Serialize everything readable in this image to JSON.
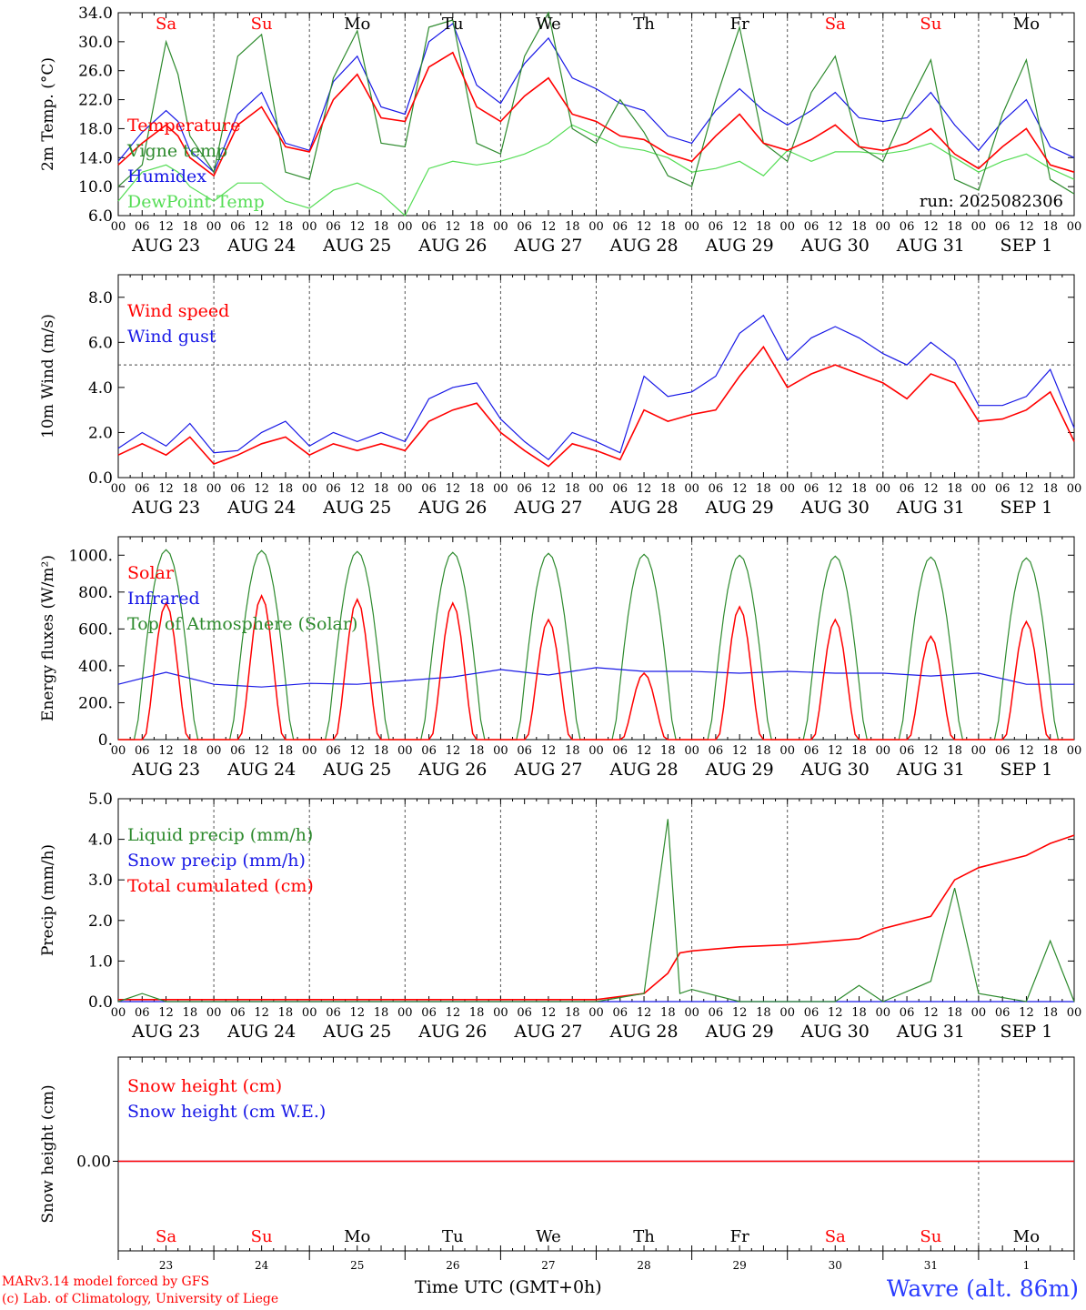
{
  "colors": {
    "red": "#ff0000",
    "green": "#2d8a2d",
    "blue": "#1818e6",
    "lightgreen": "#55dd55",
    "axis": "#000000",
    "weekend": "#ff0000",
    "weekday": "#000000",
    "footer_blue": "#2a3cff"
  },
  "days": [
    {
      "abbr": "Sa",
      "date": "AUG 23",
      "num": "23",
      "weekend": true
    },
    {
      "abbr": "Su",
      "date": "AUG 24",
      "num": "24",
      "weekend": true
    },
    {
      "abbr": "Mo",
      "date": "AUG 25",
      "num": "25",
      "weekend": false
    },
    {
      "abbr": "Tu",
      "date": "AUG 26",
      "num": "26",
      "weekend": false
    },
    {
      "abbr": "We",
      "date": "AUG 27",
      "num": "27",
      "weekend": false
    },
    {
      "abbr": "Th",
      "date": "AUG 28",
      "num": "28",
      "weekend": false
    },
    {
      "abbr": "Fr",
      "date": "AUG 29",
      "num": "29",
      "weekend": false
    },
    {
      "abbr": "Sa",
      "date": "AUG 30",
      "num": "30",
      "weekend": true
    },
    {
      "abbr": "Su",
      "date": "AUG 31",
      "num": "31",
      "weekend": true
    },
    {
      "abbr": "Mo",
      "date": "SEP  1",
      "num": "1",
      "weekend": false
    }
  ],
  "hour_labels": [
    "00",
    "06",
    "12",
    "18"
  ],
  "footer": {
    "credit_line1": "MARv3.14 model forced by GFS",
    "credit_line2": "(c) Lab. of Climatology, University of Liege",
    "xlabel": "Time UTC (GMT+0h)",
    "station": "Wavre (alt. 86m)"
  },
  "chart_data": [
    {
      "type": "line",
      "ylabel": "2m Temp. (°C)",
      "annotation": "run: 2025082306",
      "ylim": [
        6,
        34
      ],
      "yticks": [
        "6.0",
        "10.0",
        "14.0",
        "18.0",
        "22.0",
        "26.0",
        "30.0",
        "34.0"
      ],
      "x_hours": [
        0,
        6,
        12,
        15,
        18,
        24,
        30,
        36,
        42,
        48,
        54,
        60,
        66,
        72,
        78,
        84,
        90,
        96,
        102,
        108,
        114,
        120,
        126,
        132,
        138,
        144,
        150,
        156,
        162,
        168,
        174,
        180,
        186,
        192,
        198,
        204,
        210,
        216,
        222,
        228,
        234,
        240
      ],
      "series": [
        {
          "name": "Temperature",
          "color": "#ff0000",
          "values": [
            13.0,
            16.0,
            18.5,
            17.0,
            14.0,
            11.5,
            18.5,
            21.0,
            15.5,
            14.8,
            22.0,
            25.5,
            19.5,
            19.0,
            26.5,
            28.5,
            21.0,
            19.0,
            22.5,
            25.0,
            20.0,
            19.0,
            17.0,
            16.5,
            14.5,
            13.5,
            17.0,
            20.0,
            16.0,
            15.0,
            16.5,
            18.5,
            15.5,
            15.0,
            16.0,
            18.0,
            14.5,
            12.5,
            15.5,
            18.0,
            13.0,
            12.0
          ]
        },
        {
          "name": "Vigne temp",
          "color": "#2d8a2d",
          "values": [
            10.0,
            13.0,
            30.0,
            25.5,
            17.0,
            12.0,
            28.0,
            31.0,
            12.0,
            11.0,
            25.0,
            31.5,
            16.0,
            15.5,
            32.0,
            33.0,
            16.0,
            14.5,
            28.0,
            34.0,
            18.0,
            16.0,
            22.0,
            17.5,
            11.5,
            10.0,
            22.0,
            32.0,
            16.0,
            13.5,
            23.0,
            28.0,
            15.5,
            13.5,
            21.0,
            27.5,
            11.0,
            9.5,
            20.0,
            27.5,
            11.0,
            9.0
          ]
        },
        {
          "name": "Humidex",
          "color": "#1818e6",
          "values": [
            13.5,
            17.5,
            20.5,
            19.0,
            15.0,
            12.0,
            20.0,
            23.0,
            16.0,
            15.0,
            24.5,
            28.0,
            21.0,
            20.0,
            30.0,
            32.5,
            24.0,
            21.5,
            27.0,
            30.5,
            25.0,
            23.5,
            21.5,
            20.5,
            17.0,
            16.0,
            20.5,
            23.5,
            20.5,
            18.5,
            20.5,
            23.0,
            19.5,
            19.0,
            19.5,
            23.0,
            18.5,
            15.0,
            19.0,
            22.0,
            15.5,
            14.0
          ]
        },
        {
          "name": "DewPoint Temp",
          "color": "#55dd55",
          "values": [
            8.0,
            12.0,
            13.0,
            12.0,
            10.0,
            8.0,
            10.5,
            10.5,
            8.0,
            7.0,
            9.5,
            10.5,
            9.0,
            6.0,
            12.5,
            13.5,
            13.0,
            13.5,
            14.5,
            16.0,
            18.5,
            17.0,
            15.5,
            15.0,
            14.0,
            12.0,
            12.5,
            13.5,
            11.5,
            15.0,
            13.5,
            14.8,
            14.8,
            14.5,
            15.0,
            16.0,
            14.0,
            12.0,
            13.5,
            14.5,
            12.5,
            11.0
          ]
        }
      ]
    },
    {
      "type": "line",
      "ylabel": "10m Wind (m/s)",
      "ylim": [
        0,
        9
      ],
      "yticks": [
        "0.0",
        "2.0",
        "4.0",
        "6.0",
        "8.0"
      ],
      "reference_line": 5,
      "x_hours": [
        0,
        6,
        12,
        18,
        24,
        30,
        36,
        42,
        48,
        54,
        60,
        66,
        72,
        78,
        84,
        90,
        96,
        102,
        108,
        114,
        120,
        126,
        132,
        138,
        144,
        150,
        156,
        162,
        168,
        174,
        180,
        186,
        192,
        198,
        204,
        210,
        216,
        222,
        228,
        234,
        240
      ],
      "series": [
        {
          "name": "Wind speed",
          "color": "#ff0000",
          "values": [
            1.0,
            1.5,
            1.0,
            1.8,
            0.6,
            1.0,
            1.5,
            1.8,
            1.0,
            1.5,
            1.2,
            1.5,
            1.2,
            2.5,
            3.0,
            3.3,
            2.0,
            1.2,
            0.5,
            1.5,
            1.2,
            0.8,
            3.0,
            2.5,
            2.8,
            3.0,
            4.5,
            5.8,
            4.0,
            4.6,
            5.0,
            4.6,
            4.2,
            3.5,
            4.6,
            4.2,
            2.5,
            2.6,
            3.0,
            3.8,
            1.6
          ]
        },
        {
          "name": "Wind gust",
          "color": "#1818e6",
          "values": [
            1.3,
            2.0,
            1.4,
            2.4,
            1.1,
            1.2,
            2.0,
            2.5,
            1.4,
            2.0,
            1.6,
            2.0,
            1.6,
            3.5,
            4.0,
            4.2,
            2.6,
            1.6,
            0.8,
            2.0,
            1.6,
            1.1,
            4.5,
            3.6,
            3.8,
            4.5,
            6.4,
            7.2,
            5.2,
            6.2,
            6.7,
            6.2,
            5.5,
            5.0,
            6.0,
            5.2,
            3.2,
            3.2,
            3.6,
            4.8,
            2.2
          ]
        }
      ]
    },
    {
      "type": "line",
      "ylabel": "Energy fluxes (W/m²)",
      "ylim": [
        0,
        1100
      ],
      "yticks": [
        "0.",
        "200.",
        "400.",
        "600.",
        "800.",
        "1000."
      ],
      "toa_peak": [
        1030,
        1025,
        1020,
        1015,
        1010,
        1005,
        1000,
        995,
        990,
        985
      ],
      "solar_peak": [
        740,
        780,
        760,
        740,
        650,
        360,
        720,
        650,
        560,
        640
      ],
      "x_hours": [
        0,
        12,
        24,
        36,
        48,
        60,
        72,
        84,
        96,
        108,
        120,
        132,
        144,
        156,
        168,
        180,
        192,
        204,
        216,
        228,
        240
      ],
      "series": [
        {
          "name": "Solar",
          "color": "#ff0000",
          "values": []
        },
        {
          "name": "Infrared",
          "color": "#1818e6",
          "values": [
            300,
            365,
            300,
            285,
            305,
            300,
            320,
            340,
            380,
            350,
            390,
            370,
            370,
            360,
            370,
            360,
            360,
            345,
            360,
            300,
            300
          ]
        },
        {
          "name": "Top of Atmosphere (Solar)",
          "color": "#2d8a2d",
          "values": []
        }
      ]
    },
    {
      "type": "line",
      "ylabel": "Precip (mm/h)",
      "ylim": [
        0,
        5
      ],
      "yticks": [
        "0.0",
        "1.0",
        "2.0",
        "3.0",
        "4.0",
        "5.0"
      ],
      "x_hours": [
        0,
        6,
        12,
        24,
        48,
        96,
        120,
        132,
        138,
        141,
        144,
        156,
        168,
        180,
        186,
        192,
        204,
        210,
        216,
        228,
        234,
        240
      ],
      "series": [
        {
          "name": "Liquid precip (mm/h)",
          "color": "#2d8a2d",
          "values": [
            0.0,
            0.2,
            0.0,
            0.0,
            0.0,
            0.0,
            0.0,
            0.2,
            4.5,
            0.2,
            0.3,
            0.0,
            0.0,
            0.0,
            0.4,
            0.0,
            0.5,
            2.8,
            0.2,
            0.0,
            1.5,
            0.0
          ]
        },
        {
          "name": "Snow precip (mm/h)",
          "color": "#1818e6",
          "values": [
            0.0,
            0.0,
            0.0,
            0.0,
            0.0,
            0.0,
            0.0,
            0.0,
            0.0,
            0.0,
            0.0,
            0.0,
            0.0,
            0.0,
            0.0,
            0.0,
            0.0,
            0.0,
            0.0,
            0.0,
            0.0,
            0.0
          ]
        },
        {
          "name": "Total cumulated (cm)",
          "color": "#ff0000",
          "values": [
            0.05,
            0.05,
            0.05,
            0.05,
            0.05,
            0.05,
            0.05,
            0.2,
            0.7,
            1.2,
            1.25,
            1.35,
            1.4,
            1.5,
            1.55,
            1.8,
            2.1,
            3.0,
            3.3,
            3.6,
            3.9,
            4.1
          ]
        }
      ]
    },
    {
      "type": "line",
      "ylabel": "Snow height (cm)",
      "yticks": [
        "0.00"
      ],
      "x_hours": [
        0,
        240
      ],
      "series": [
        {
          "name": "Snow height (cm)",
          "color": "#ff0000",
          "values": [
            0,
            0
          ]
        },
        {
          "name": "Snow height (cm W.E.)",
          "color": "#1818e6",
          "values": [
            0,
            0
          ]
        }
      ]
    }
  ]
}
